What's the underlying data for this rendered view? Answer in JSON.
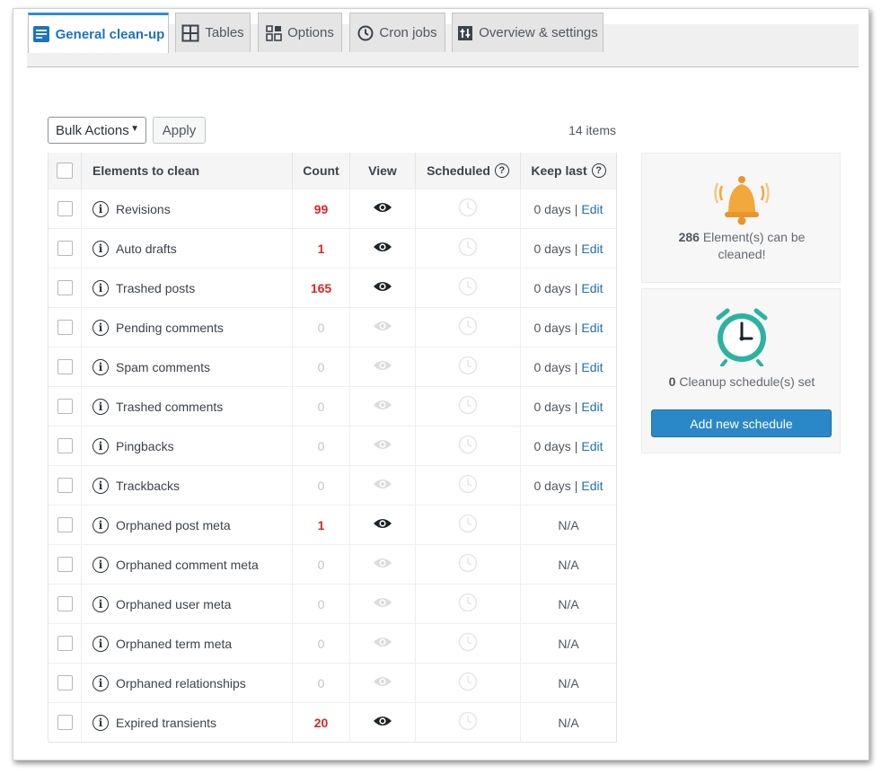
{
  "tabs": [
    {
      "label": "General clean-up",
      "icon": "document-list-icon",
      "active": true
    },
    {
      "label": "Tables",
      "icon": "table-grid-icon",
      "active": false
    },
    {
      "label": "Options",
      "icon": "options-grid-icon",
      "active": false
    },
    {
      "label": "Cron jobs",
      "icon": "clock-history-icon",
      "active": false
    },
    {
      "label": "Overview & settings",
      "icon": "settings-sliders-icon",
      "active": false
    }
  ],
  "toolbar": {
    "bulk_actions": "Bulk Actions",
    "apply": "Apply",
    "items_count": "14 items"
  },
  "table": {
    "headers": {
      "name": "Elements to clean",
      "count": "Count",
      "view": "View",
      "scheduled": "Scheduled",
      "keep_last": "Keep last",
      "help": "?"
    },
    "rows": [
      {
        "name": "Revisions",
        "count": "99",
        "viewable": true,
        "keep_value": "0 days",
        "sep": "|",
        "edit": "Edit"
      },
      {
        "name": "Auto drafts",
        "count": "1",
        "viewable": true,
        "keep_value": "0 days",
        "sep": "|",
        "edit": "Edit"
      },
      {
        "name": "Trashed posts",
        "count": "165",
        "viewable": true,
        "keep_value": "0 days",
        "sep": "|",
        "edit": "Edit"
      },
      {
        "name": "Pending comments",
        "count": "0",
        "viewable": false,
        "keep_value": "0 days",
        "sep": "|",
        "edit": "Edit"
      },
      {
        "name": "Spam comments",
        "count": "0",
        "viewable": false,
        "keep_value": "0 days",
        "sep": "|",
        "edit": "Edit"
      },
      {
        "name": "Trashed comments",
        "count": "0",
        "viewable": false,
        "keep_value": "0 days",
        "sep": "|",
        "edit": "Edit"
      },
      {
        "name": "Pingbacks",
        "count": "0",
        "viewable": false,
        "keep_value": "0 days",
        "sep": "|",
        "edit": "Edit"
      },
      {
        "name": "Trackbacks",
        "count": "0",
        "viewable": false,
        "keep_value": "0 days",
        "sep": "|",
        "edit": "Edit"
      },
      {
        "name": "Orphaned post meta",
        "count": "1",
        "viewable": true,
        "keep_value": "N/A",
        "sep": "",
        "edit": ""
      },
      {
        "name": "Orphaned comment meta",
        "count": "0",
        "viewable": false,
        "keep_value": "N/A",
        "sep": "",
        "edit": ""
      },
      {
        "name": "Orphaned user meta",
        "count": "0",
        "viewable": false,
        "keep_value": "N/A",
        "sep": "",
        "edit": ""
      },
      {
        "name": "Orphaned term meta",
        "count": "0",
        "viewable": false,
        "keep_value": "N/A",
        "sep": "",
        "edit": ""
      },
      {
        "name": "Orphaned relationships",
        "count": "0",
        "viewable": false,
        "keep_value": "N/A",
        "sep": "",
        "edit": ""
      },
      {
        "name": "Expired transients",
        "count": "20",
        "viewable": true,
        "keep_value": "N/A",
        "sep": "",
        "edit": ""
      }
    ]
  },
  "summary_card": {
    "icon": "bell-icon",
    "count": "286",
    "text": "Element(s) can be cleaned!"
  },
  "schedule_card": {
    "icon": "alarm-clock-icon",
    "count": "0",
    "text": "Cleanup schedule(s) set",
    "button": "Add new schedule"
  },
  "colors": {
    "accent": "#2d8fcf",
    "count_red": "#e02424",
    "link": "#2271b1",
    "button": "#2b88c8",
    "bell": "#f3a83b",
    "clock": "#2bb3a0"
  }
}
